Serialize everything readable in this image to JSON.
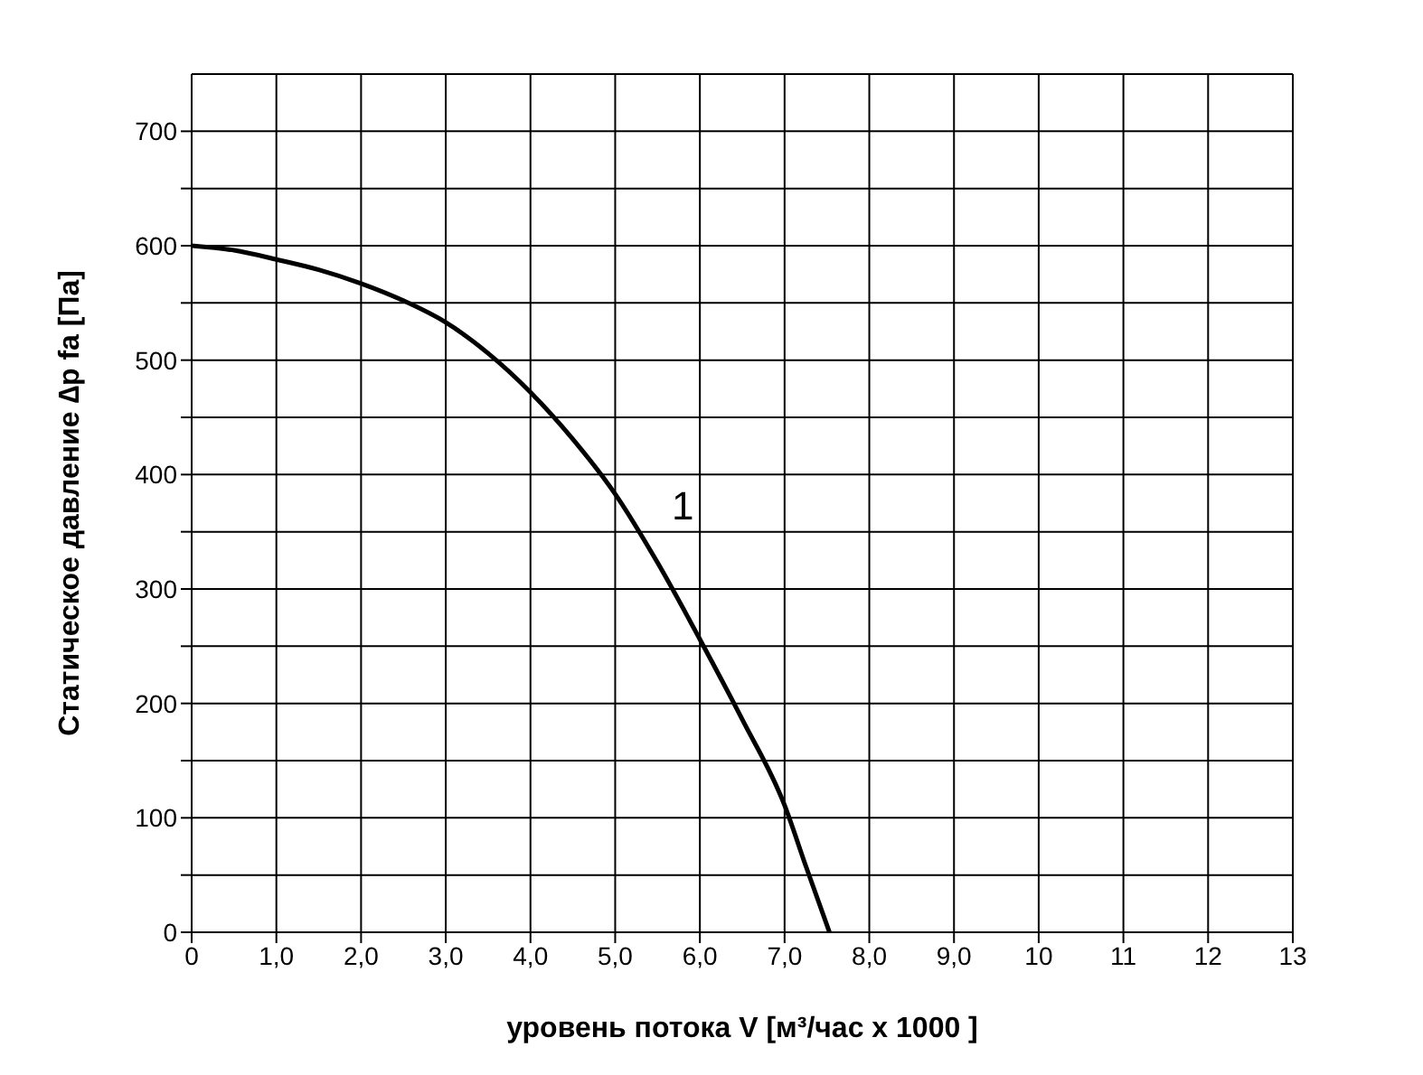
{
  "chart_data": {
    "type": "line",
    "xlabel": "уровень потока  V [м³/час x 1000 ]",
    "ylabel": "Статическое давление  ∆p fa [Па]",
    "x": [
      0,
      0.5,
      1,
      1.5,
      2,
      2.5,
      3,
      3.5,
      4,
      4.5,
      5,
      5.5,
      6,
      6.5,
      7,
      7.25,
      7.53
    ],
    "series": [
      {
        "name": "1",
        "color": "#000000",
        "values": [
          600,
          596,
          588,
          579,
          567,
          552,
          533,
          506,
          472,
          431,
          383,
          323,
          256,
          186,
          111,
          58,
          0
        ]
      }
    ],
    "xlim": [
      0,
      13
    ],
    "xticks": [
      0,
      {
        "value": 1,
        "label": "1,0"
      },
      {
        "value": 2,
        "label": "2,0"
      },
      {
        "value": 3,
        "label": "3,0"
      },
      {
        "value": 4,
        "label": "4,0"
      },
      {
        "value": 5,
        "label": "5,0"
      },
      {
        "value": 6,
        "label": "6,0"
      },
      {
        "value": 7,
        "label": "7,0"
      },
      {
        "value": 8,
        "label": "8,0"
      },
      {
        "value": 9,
        "label": "9,0"
      },
      10,
      11,
      12,
      13
    ],
    "ylim": [
      0,
      750
    ],
    "yticks": [
      0,
      {
        "value": 50,
        "label": null
      },
      100,
      {
        "value": 150,
        "label": null
      },
      200,
      {
        "value": 250,
        "label": null
      },
      300,
      {
        "value": 350,
        "label": null
      },
      400,
      {
        "value": 450,
        "label": null
      },
      500,
      {
        "value": 550,
        "label": null
      },
      600,
      {
        "value": 650,
        "label": null
      },
      700
    ],
    "grid": true,
    "marker": "none",
    "line_style": "solid"
  }
}
